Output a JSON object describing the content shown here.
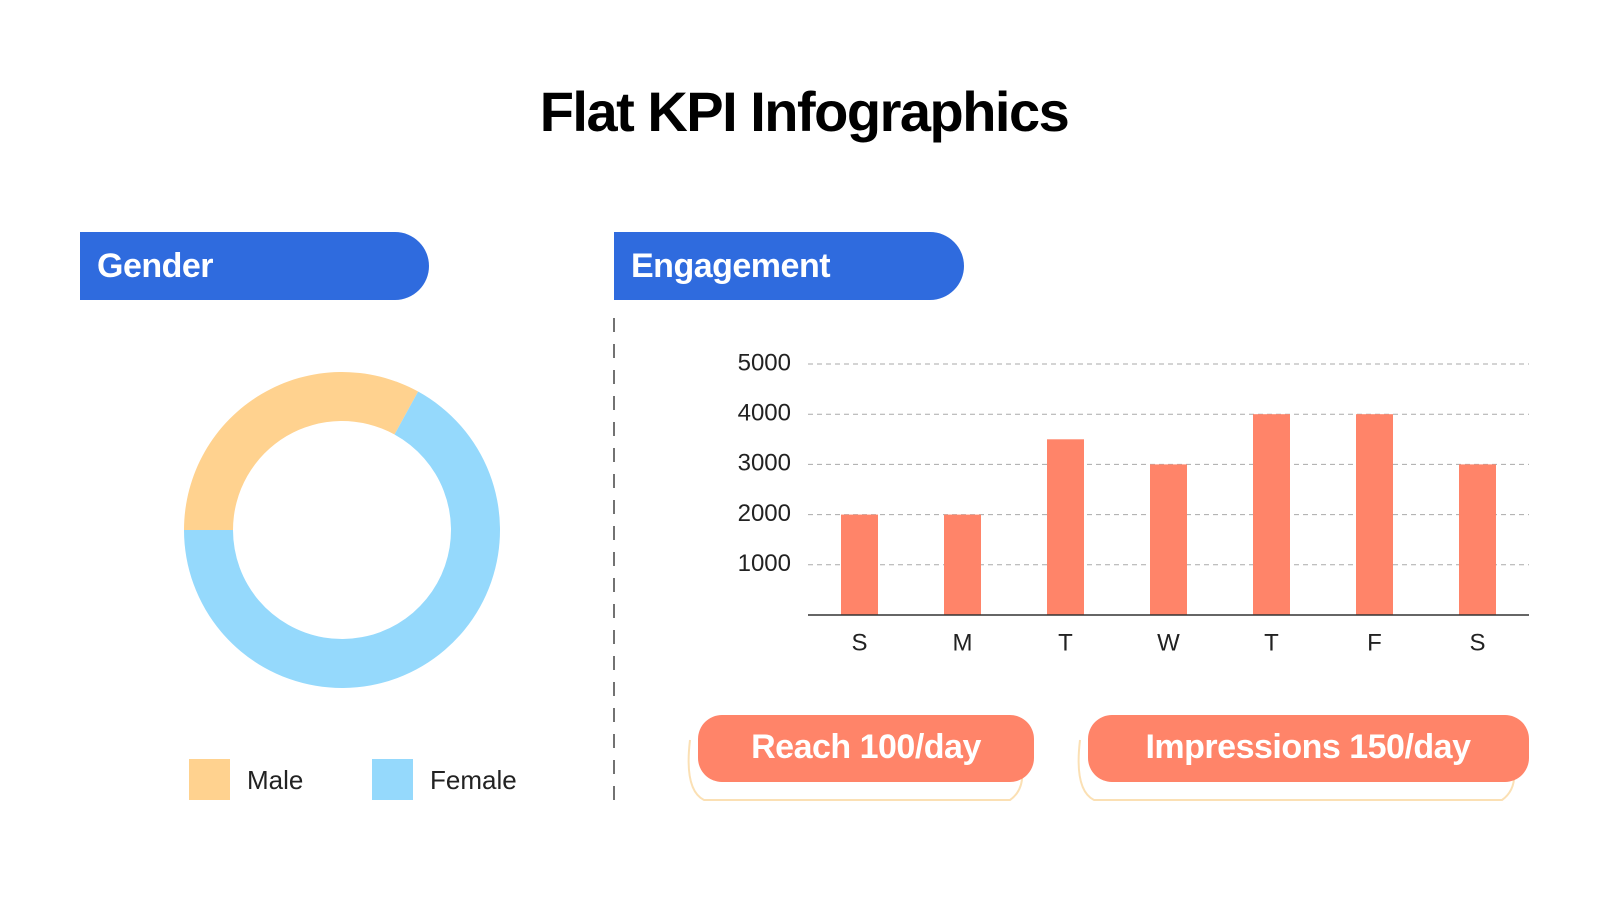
{
  "title": "Flat KPI Infographics",
  "kpis": [
    "Reach 100/day",
    "Impressions 150/day"
  ],
  "chart_data": [
    {
      "type": "donut",
      "title": "Gender",
      "categories": [
        "Male",
        "Female"
      ],
      "values": [
        33,
        67
      ],
      "colors": [
        "#ffd28f",
        "#95d9fc"
      ],
      "legend": "bottom"
    },
    {
      "type": "bar",
      "title": "Engagement",
      "categories": [
        "S",
        "M",
        "T",
        "W",
        "T",
        "F",
        "S"
      ],
      "values": [
        2000,
        2000,
        3500,
        3000,
        4000,
        4000,
        3000
      ],
      "color": "#ff8469",
      "ylim": [
        0,
        5000
      ],
      "yticks": [
        1000,
        2000,
        3000,
        4000,
        5000
      ],
      "grid": true
    }
  ]
}
